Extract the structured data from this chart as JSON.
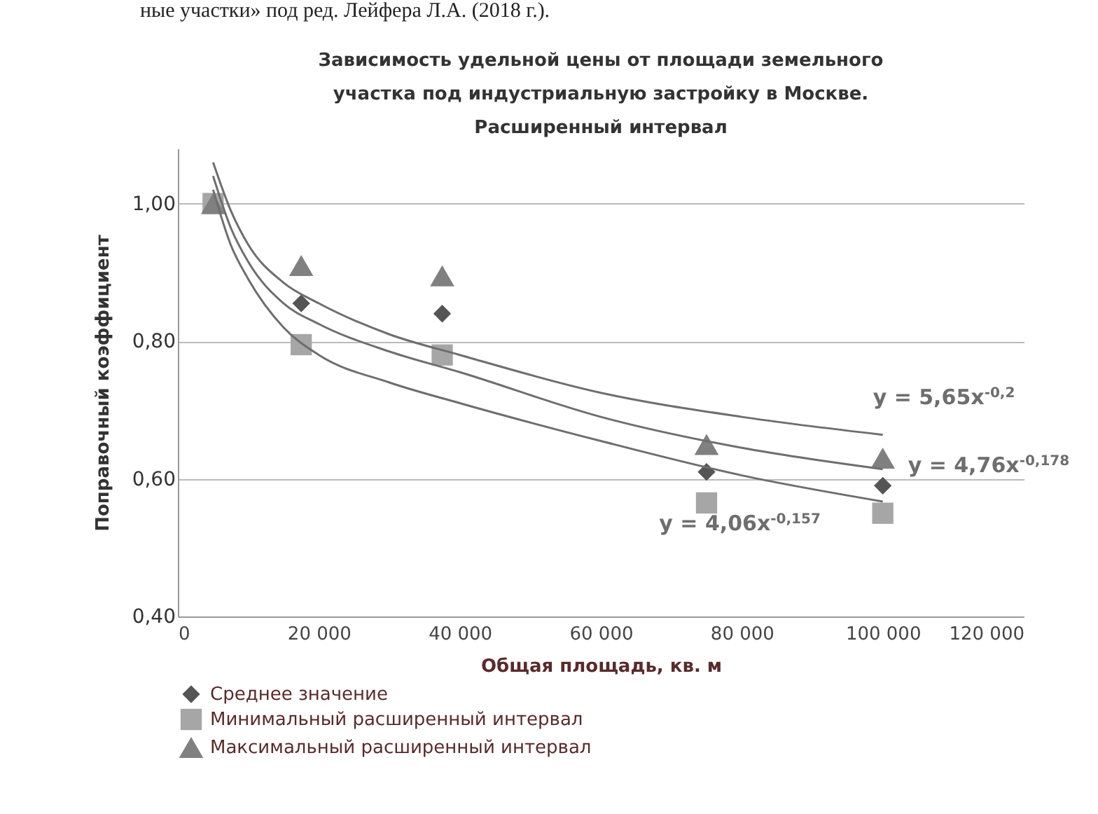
{
  "chart_data": {
    "type": "scatter",
    "title": "Зависимость удельной цены от площади земельного участка под индустриальную застройку в Москве. Расширенный интервал",
    "xlabel": "Общая площадь, кв. м",
    "ylabel": "Поправочный коэффициент",
    "xlim": [
      0,
      120000
    ],
    "xticks": [
      0,
      {
        "value": 20000,
        "label": "20 000"
      },
      {
        "value": 40000,
        "label": "40 000"
      },
      {
        "value": 60000,
        "label": "60 000"
      },
      {
        "value": 80000,
        "label": "80 000"
      },
      {
        "value": 100000,
        "label": "100 000"
      },
      {
        "value": 120000,
        "label": "120 000"
      }
    ],
    "ylim": [
      0.4,
      1.08
    ],
    "yticks": [
      {
        "value": 0.4,
        "label": "0,40"
      },
      {
        "value": 0.6,
        "label": "0,60"
      },
      {
        "value": 0.8,
        "label": "0,80"
      },
      {
        "value": 1,
        "label": "1,00"
      }
    ],
    "grid": "y",
    "legend": "bottom",
    "x": [
      5000,
      17500,
      37500,
      75000,
      100000
    ],
    "series": [
      {
        "name": "Среднее значение",
        "color": "#555555",
        "marker": "diamond",
        "values": [
          null,
          0.855,
          0.84,
          0.61,
          0.59
        ]
      },
      {
        "name": "Минимальный расширенный интервал",
        "color": "#a6a6a6",
        "marker": "square",
        "values": [
          1.0,
          0.795,
          0.78,
          0.565,
          0.55
        ]
      },
      {
        "name": "Максимальный расширенный интервал",
        "color": "#808080",
        "marker": "triangle",
        "values": [
          1.0,
          0.91,
          0.895,
          0.65,
          0.63
        ]
      },
      {
        "type": "line",
        "name": "y = 5,65x$^{-0,2}$",
        "color": "#6e6e6e",
        "x": [
          5000,
          7500,
          10000,
          15000,
          20000,
          30000,
          40000,
          60000,
          80000,
          100000
        ],
        "values": [
          1.06,
          0.99,
          0.94,
          0.885,
          0.855,
          0.81,
          0.78,
          0.725,
          0.69,
          0.664
        ]
      },
      {
        "type": "line",
        "name": "y = 4,76x$^{-0,178}$",
        "color": "#6e6e6e",
        "x": [
          5000,
          7500,
          10000,
          15000,
          20000,
          30000,
          40000,
          60000,
          80000,
          100000
        ],
        "values": [
          1.04,
          0.965,
          0.915,
          0.855,
          0.825,
          0.785,
          0.755,
          0.69,
          0.645,
          0.614
        ]
      },
      {
        "type": "line",
        "name": "y = 4,06x$^{-0,157}$",
        "color": "#6e6e6e",
        "x": [
          5000,
          7500,
          10000,
          15000,
          20000,
          30000,
          40000,
          60000,
          80000,
          100000
        ],
        "values": [
          1.02,
          0.94,
          0.89,
          0.82,
          0.78,
          0.74,
          0.71,
          0.655,
          0.605,
          0.567
        ]
      }
    ],
    "annotations": [
      "ные участки» под ред. Лейфера Л.А. (2018 г.)."
    ]
  }
}
